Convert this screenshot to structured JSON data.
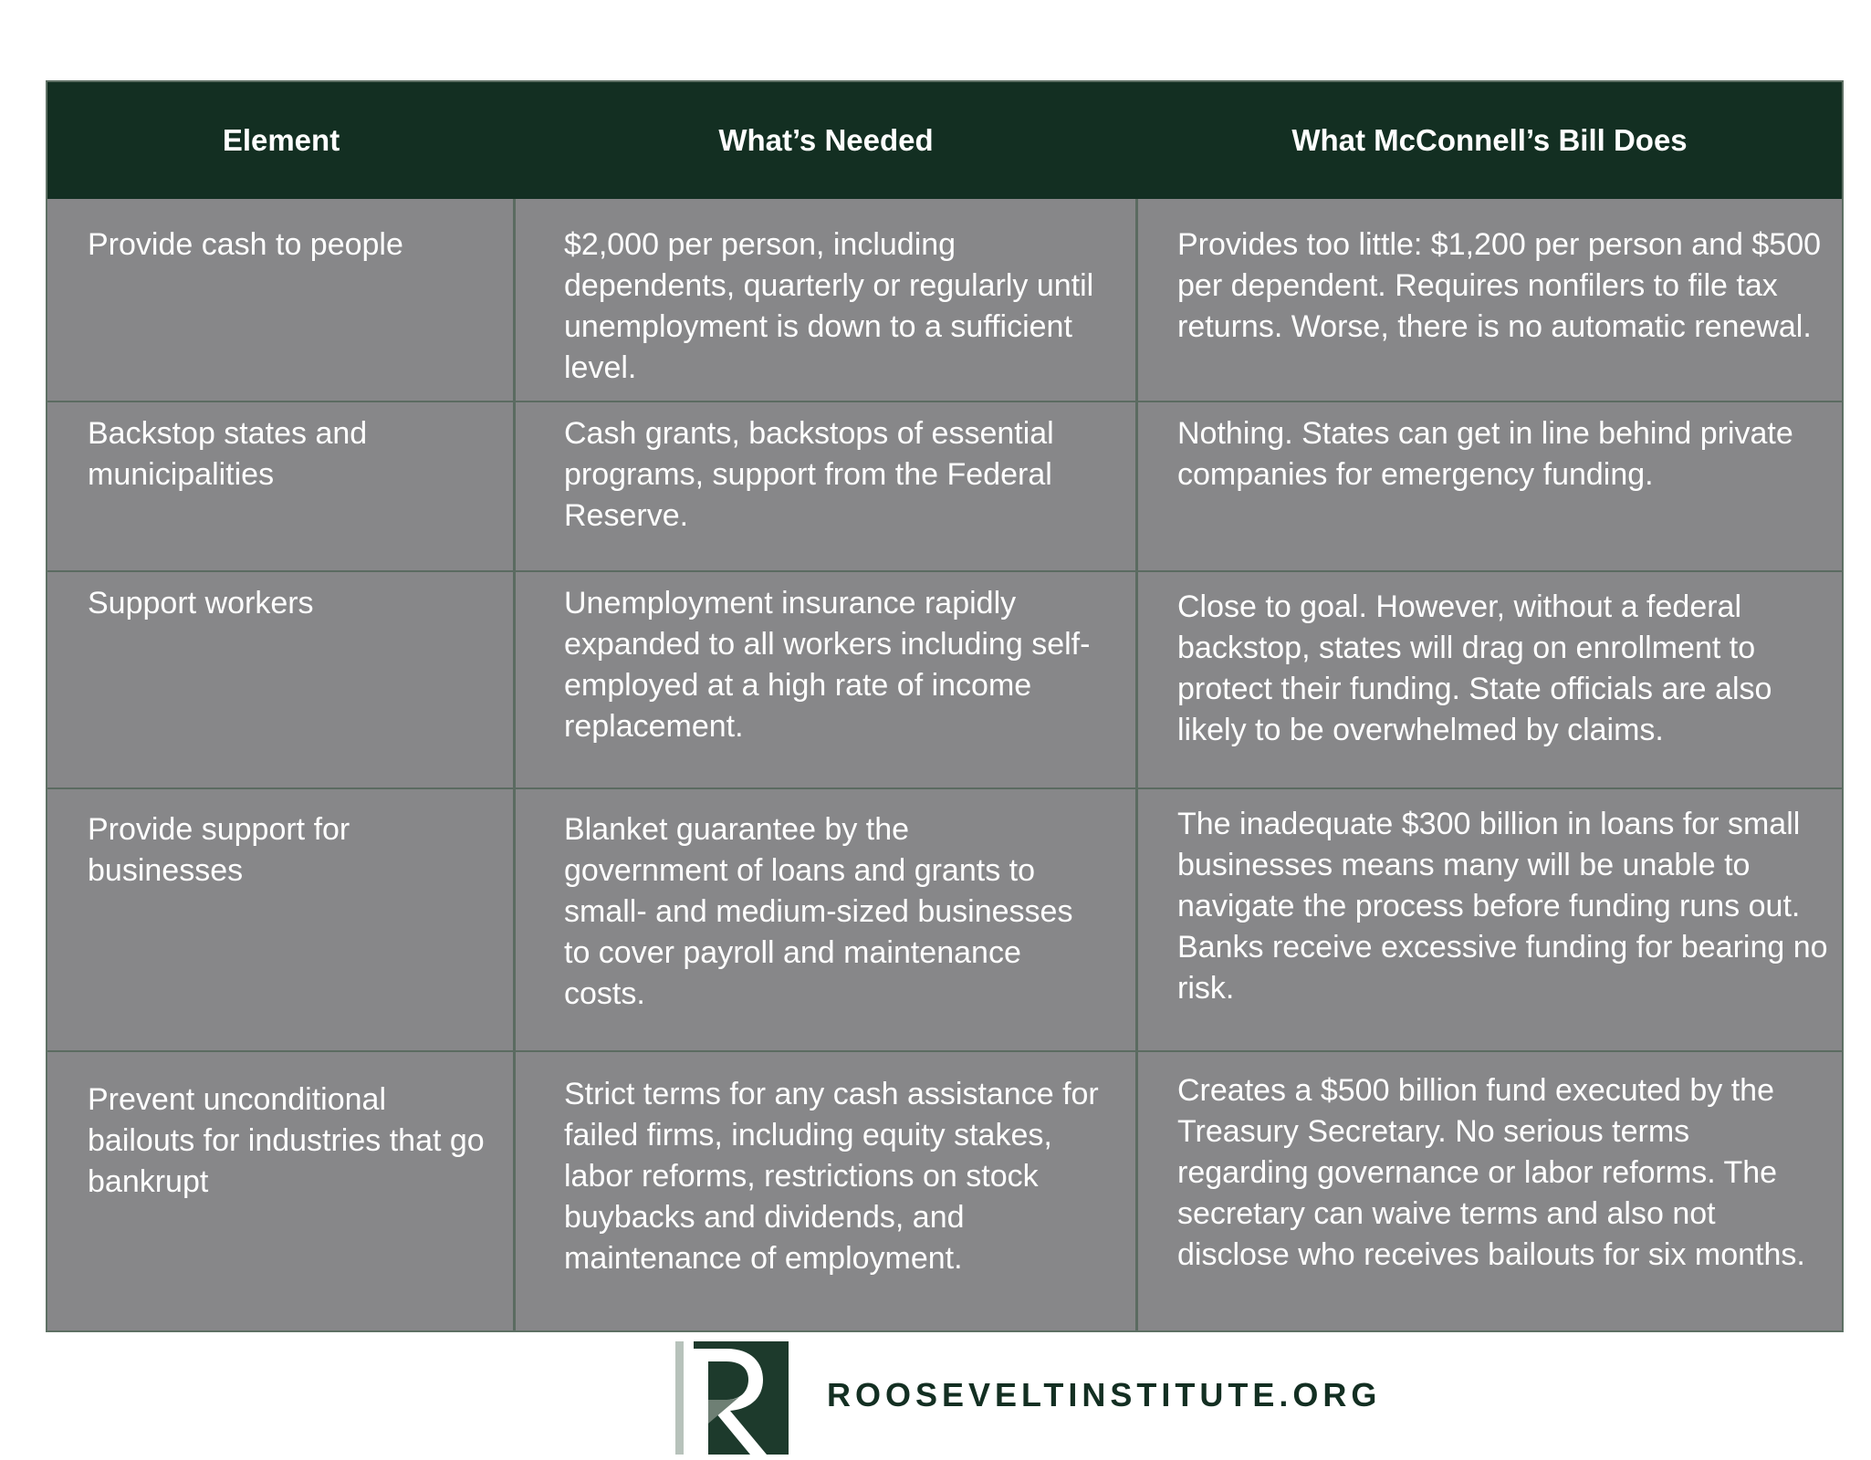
{
  "table": {
    "headers": [
      "Element",
      "What’s Needed",
      "What McConnell’s Bill Does"
    ],
    "rows": [
      {
        "element": "Provide cash to people",
        "needed": "$2,000 per person, including dependents, quarterly or regularly until unemployment is down to a sufficient level.",
        "bill": "Provides too little: $1,200 per person and $500 per dependent. Requires nonfilers to file tax returns. Worse, there is no automatic renewal."
      },
      {
        "element": "Backstop states and municipalities",
        "needed": "Cash grants, backstops of essential programs, support from the Federal Reserve.",
        "bill": "Nothing. States can get in line behind private companies for emergency funding."
      },
      {
        "element": "Support workers",
        "needed": "Unemployment insurance rapidly expanded to all workers including self-employed at a high rate of income replacement.",
        "bill": "Close to goal. However, without a federal backstop, states will drag on enrollment to protect their funding. State officials are also likely to be overwhelmed by claims."
      },
      {
        "element": "Provide support for businesses",
        "needed": "Blanket guarantee by the government of loans and grants to small- and medium-sized businesses to cover payroll and maintenance costs.",
        "bill": "The inadequate $300 billion in loans for small businesses means many will be unable to navigate the process before funding runs out. Banks receive excessive funding for bearing no risk."
      },
      {
        "element": "Prevent unconditional bailouts for industries that go bankrupt",
        "needed": "Strict terms for any cash assistance for failed firms, including equity stakes, labor reforms, restrictions on stock buybacks and dividends, and maintenance of employment.",
        "bill": "Creates a $500 billion fund executed by the Treasury Secretary. No serious terms regarding governance or labor reforms. The secretary can waive terms and also not disclose who receives bailouts for six months."
      }
    ]
  },
  "footer": {
    "logo_letter": "R",
    "site": "ROOSEVELTINSTITUTE.ORG"
  },
  "colors": {
    "header_bg": "#132f22",
    "cell_bg": "#878789",
    "divider": "#5b6b61",
    "brand": "#132f22"
  }
}
